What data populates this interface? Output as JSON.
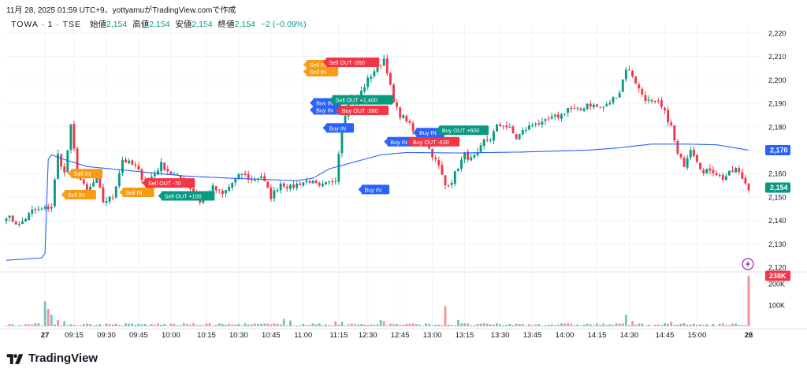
{
  "header": {
    "snapshot_text": "11月 28, 2025 01:59 UTC+9、yottyamuがTradingView.comで作成"
  },
  "legend": {
    "symbol": "TOWA · 1 · TSE",
    "open_label": "始値",
    "open_value": "2,154",
    "high_label": "高値",
    "high_value": "2,154",
    "low_label": "安値",
    "low_value": "2,154",
    "close_label": "終値",
    "close_value": "2,154",
    "change": "−2 (−0.09%)"
  },
  "brand": {
    "name": "TradingView"
  },
  "colors": {
    "up": "#089981",
    "down": "#f23645",
    "vwap": "#2962ff",
    "buy_in": "#2962ff",
    "sell_in": "#f89c12",
    "sell_out_loss": "#f23645",
    "sell_out_profit": "#089981",
    "grid": "#f0f3fa"
  },
  "chart_data": {
    "type": "candlestick",
    "y_axis": {
      "range": [
        2117,
        2224
      ],
      "ticks": [
        "2,120",
        "2,130",
        "2,140",
        "2,150",
        "2,160",
        "2,170",
        "2,180",
        "2,190",
        "2,200",
        "2,210",
        "2,220"
      ],
      "tick_values": [
        2120,
        2130,
        2140,
        2150,
        2160,
        2170,
        2180,
        2190,
        2200,
        2210,
        2220
      ]
    },
    "volume_axis": {
      "ticks": [
        "100K",
        "200K"
      ],
      "tick_values": [
        100000,
        200000
      ],
      "max": 245000
    },
    "x_axis": {
      "labels": [
        "27",
        "09:15",
        "09:30",
        "09:45",
        "10:00",
        "10:15",
        "10:30",
        "10:45",
        "11:00",
        "11:15",
        "12:30",
        "12:45",
        "13:00",
        "13:15",
        "13:30",
        "13:45",
        "14:00",
        "14:15",
        "14:30",
        "14:45",
        "15:00",
        "28"
      ],
      "bold": [
        "27",
        "28"
      ]
    },
    "price_badges": [
      {
        "label": "2,170",
        "value": 2170,
        "color": "#2962ff"
      },
      {
        "label": "2,154",
        "value": 2154,
        "color": "#089981"
      }
    ],
    "volume_badge": {
      "label": "238K",
      "color": "#f23645"
    },
    "price_anchors": [
      [
        0,
        2142
      ],
      [
        4,
        2138
      ],
      [
        8,
        2144
      ],
      [
        12,
        2145
      ],
      [
        14,
        2146
      ],
      [
        16,
        2168
      ],
      [
        18,
        2160
      ],
      [
        20,
        2180
      ],
      [
        22,
        2160
      ],
      [
        25,
        2152
      ],
      [
        28,
        2158
      ],
      [
        30,
        2148
      ],
      [
        33,
        2150
      ],
      [
        36,
        2166
      ],
      [
        40,
        2163
      ],
      [
        43,
        2156
      ],
      [
        46,
        2160
      ],
      [
        48,
        2164
      ],
      [
        51,
        2160
      ],
      [
        54,
        2158
      ],
      [
        57,
        2154
      ],
      [
        60,
        2148
      ],
      [
        62,
        2152
      ],
      [
        64,
        2154
      ],
      [
        67,
        2151
      ],
      [
        70,
        2156
      ],
      [
        73,
        2160
      ],
      [
        76,
        2157
      ],
      [
        79,
        2159
      ],
      [
        82,
        2150
      ],
      [
        85,
        2156
      ],
      [
        88,
        2154
      ],
      [
        91,
        2156
      ],
      [
        94,
        2157
      ],
      [
        97,
        2154
      ],
      [
        100,
        2156
      ],
      [
        102,
        2158
      ],
      [
        104,
        2180
      ],
      [
        106,
        2192
      ],
      [
        108,
        2190
      ],
      [
        110,
        2195
      ],
      [
        112,
        2200
      ],
      [
        114,
        2204
      ],
      [
        116,
        2207
      ],
      [
        117,
        2209
      ],
      [
        118,
        2204
      ],
      [
        120,
        2190
      ],
      [
        122,
        2185
      ],
      [
        124,
        2183
      ],
      [
        126,
        2178
      ],
      [
        128,
        2176
      ],
      [
        130,
        2173
      ],
      [
        132,
        2168
      ],
      [
        134,
        2163
      ],
      [
        136,
        2155
      ],
      [
        138,
        2157
      ],
      [
        140,
        2163
      ],
      [
        142,
        2168
      ],
      [
        144,
        2166
      ],
      [
        146,
        2168
      ],
      [
        148,
        2174
      ],
      [
        150,
        2175
      ],
      [
        152,
        2180
      ],
      [
        154,
        2181
      ],
      [
        156,
        2179
      ],
      [
        158,
        2175
      ],
      [
        160,
        2178
      ],
      [
        162,
        2180
      ],
      [
        164,
        2182
      ],
      [
        166,
        2181
      ],
      [
        168,
        2183
      ],
      [
        170,
        2184
      ],
      [
        172,
        2185
      ],
      [
        174,
        2188
      ],
      [
        176,
        2187
      ],
      [
        178,
        2187
      ],
      [
        180,
        2190
      ],
      [
        182,
        2189
      ],
      [
        184,
        2188
      ],
      [
        186,
        2189
      ],
      [
        188,
        2192
      ],
      [
        190,
        2195
      ],
      [
        192,
        2205
      ],
      [
        194,
        2202
      ],
      [
        196,
        2196
      ],
      [
        198,
        2192
      ],
      [
        200,
        2190
      ],
      [
        202,
        2190
      ],
      [
        204,
        2186
      ],
      [
        206,
        2180
      ],
      [
        208,
        2168
      ],
      [
        210,
        2164
      ],
      [
        212,
        2171
      ],
      [
        214,
        2166
      ],
      [
        216,
        2160
      ],
      [
        218,
        2162
      ],
      [
        220,
        2160
      ],
      [
        222,
        2158
      ],
      [
        224,
        2160
      ],
      [
        226,
        2162
      ],
      [
        228,
        2158
      ],
      [
        230,
        2154
      ]
    ],
    "vwap_anchors": [
      [
        0,
        2123
      ],
      [
        11,
        2124
      ],
      [
        12,
        2126
      ],
      [
        13,
        2166
      ],
      [
        14,
        2168
      ],
      [
        18,
        2166
      ],
      [
        25,
        2163
      ],
      [
        40,
        2161
      ],
      [
        55,
        2159
      ],
      [
        70,
        2158
      ],
      [
        90,
        2157
      ],
      [
        95,
        2158
      ],
      [
        100,
        2162
      ],
      [
        108,
        2165
      ],
      [
        116,
        2168
      ],
      [
        124,
        2169
      ],
      [
        140,
        2168.8
      ],
      [
        160,
        2169.2
      ],
      [
        180,
        2170
      ],
      [
        190,
        2171
      ],
      [
        200,
        2172.6
      ],
      [
        210,
        2172.6
      ],
      [
        220,
        2172.3
      ],
      [
        230,
        2170
      ]
    ],
    "volume_spikes": [
      {
        "bar": 12,
        "volume": 118000,
        "dir": "up"
      },
      {
        "bar": 13,
        "volume": 82000,
        "dir": "down"
      },
      {
        "bar": 14,
        "volume": 55000,
        "dir": "up"
      },
      {
        "bar": 16,
        "volume": 30000,
        "dir": "down"
      },
      {
        "bar": 18,
        "volume": 25000,
        "dir": "up"
      },
      {
        "bar": 86,
        "volume": 34000,
        "dir": "up"
      },
      {
        "bar": 88,
        "volume": 28000,
        "dir": "up"
      },
      {
        "bar": 102,
        "volume": 24000,
        "dir": "down"
      },
      {
        "bar": 104,
        "volume": 22000,
        "dir": "up"
      },
      {
        "bar": 116,
        "volume": 30000,
        "dir": "up"
      },
      {
        "bar": 117,
        "volume": 24000,
        "dir": "down"
      },
      {
        "bar": 136,
        "volume": 95000,
        "dir": "down"
      },
      {
        "bar": 140,
        "volume": 30000,
        "dir": "up"
      },
      {
        "bar": 192,
        "volume": 54000,
        "dir": "up"
      },
      {
        "bar": 194,
        "volume": 25000,
        "dir": "down"
      },
      {
        "bar": 206,
        "volume": 22000,
        "dir": "down"
      },
      {
        "bar": 230,
        "volume": 238000,
        "dir": "down"
      }
    ],
    "trade_markers": [
      {
        "text": "Sell IN",
        "kind": "sell_in",
        "bar": 20,
        "price": 2160
      },
      {
        "text": "Sell IN",
        "kind": "sell_in",
        "bar": 18,
        "price": 2151
      },
      {
        "text": "Sell IN",
        "kind": "sell_in",
        "bar": 36,
        "price": 2152
      },
      {
        "text": "Sell OUT -70",
        "kind": "sell_out_loss",
        "bar": 43,
        "price": 2156
      },
      {
        "text": "Sell OUT +100",
        "kind": "sell_out_profit",
        "bar": 48,
        "price": 2150.5
      },
      {
        "text": "Sell IN",
        "kind": "sell_in",
        "bar": 93,
        "price": 2206.5
      },
      {
        "text": "Sell IN",
        "kind": "sell_in",
        "bar": 93,
        "price": 2203.5
      },
      {
        "text": "Sell OUT -260",
        "kind": "sell_out_loss",
        "bar": 99,
        "price": 2207.5
      },
      {
        "text": "Buy IN",
        "kind": "buy_in",
        "bar": 95,
        "price": 2190.2
      },
      {
        "text": "Buy IN",
        "kind": "buy_in",
        "bar": 95,
        "price": 2187.2
      },
      {
        "text": "Sell OUT +1,400",
        "kind": "sell_out_profit",
        "bar": 101,
        "price": 2191.5
      },
      {
        "text": "Buy OUT -380",
        "kind": "sell_out_loss",
        "bar": 103,
        "price": 2187
      },
      {
        "text": "Buy IN",
        "kind": "buy_in",
        "bar": 99,
        "price": 2179.5
      },
      {
        "text": "Buy IN",
        "kind": "buy_in",
        "bar": 118,
        "price": 2173.6
      },
      {
        "text": "Buy OUT -630",
        "kind": "sell_out_loss",
        "bar": 125,
        "price": 2173.6
      },
      {
        "text": "Buy IN",
        "kind": "buy_in",
        "bar": 127,
        "price": 2177.5
      },
      {
        "text": "Buy OUT +600",
        "kind": "sell_out_profit",
        "bar": 134,
        "price": 2178.5
      },
      {
        "text": "Buy IN",
        "kind": "buy_in",
        "bar": 110,
        "price": 2153.2
      }
    ],
    "alert_icon": "lightning-icon"
  }
}
